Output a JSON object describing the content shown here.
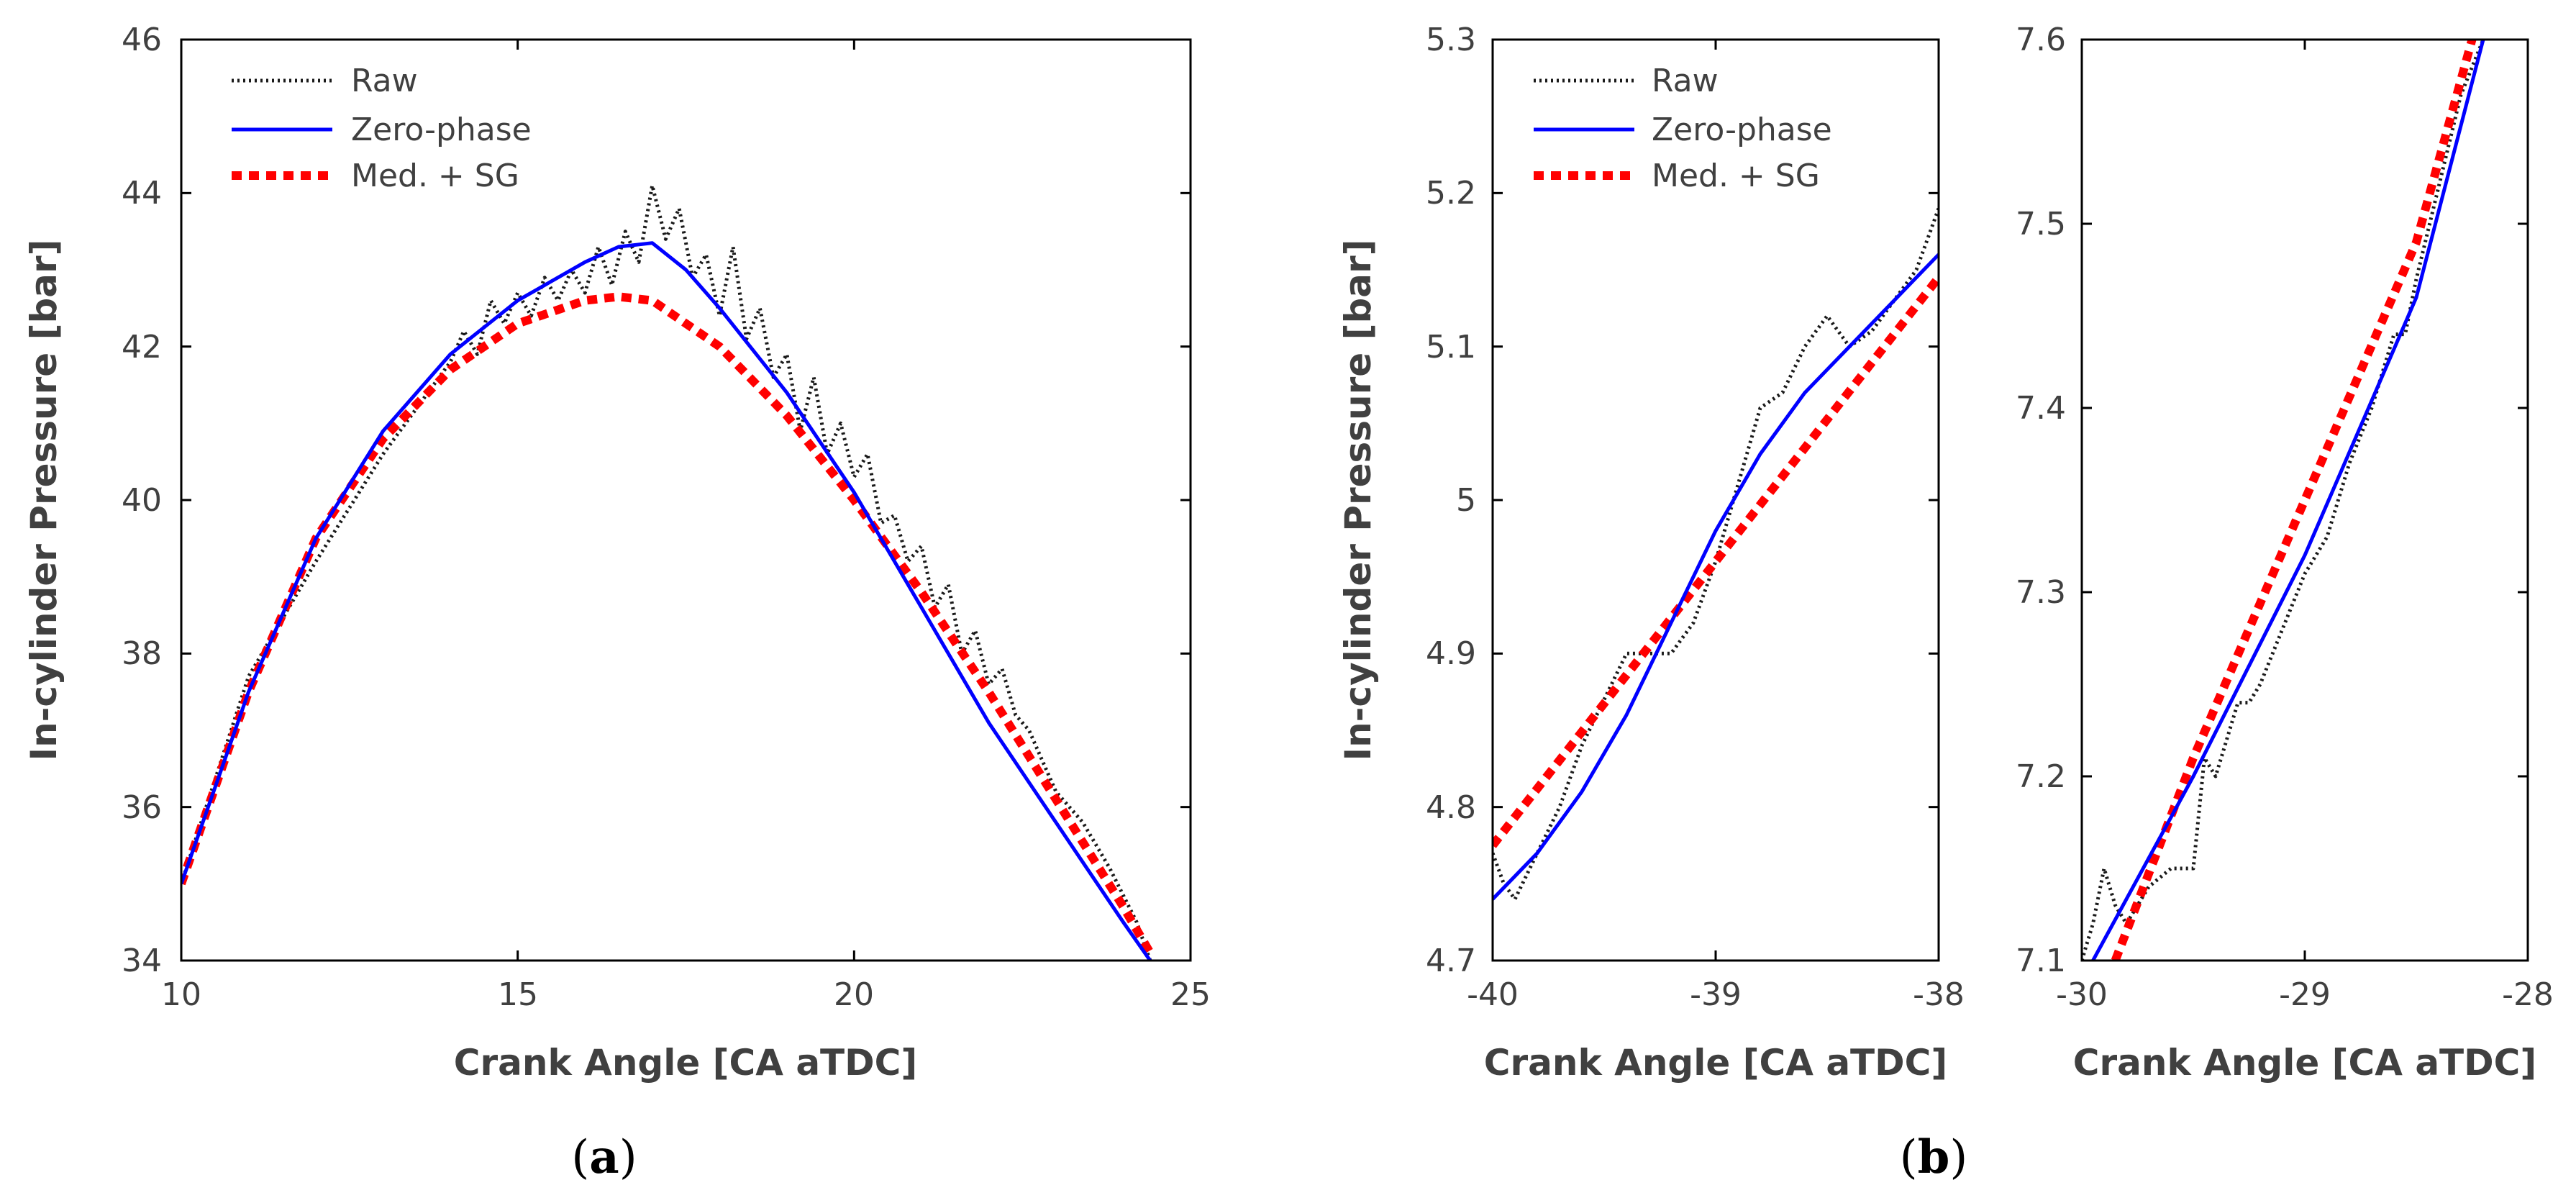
{
  "figure": {
    "panel_labels": [
      {
        "open": "(",
        "letter": "a",
        "close": ")"
      },
      {
        "open": "(",
        "letter": "b",
        "close": ")"
      }
    ]
  },
  "colors": {
    "raw": "#1a1a1a",
    "zero_phase": "#0000ff",
    "med_sg": "#ff0000",
    "axis": "#000000",
    "text": "#404040"
  },
  "chart_data": [
    {
      "id": "a",
      "type": "line",
      "xlabel": "Crank Angle [CA aTDC]",
      "ylabel": "In-cylinder Pressure [bar]",
      "xlim": [
        10,
        25
      ],
      "ylim": [
        34,
        46
      ],
      "xticks": [
        10,
        15,
        20,
        25
      ],
      "yticks": [
        34,
        36,
        38,
        40,
        42,
        44,
        46
      ],
      "xtick_labels": [
        "10",
        "15",
        "20",
        "25"
      ],
      "ytick_labels": [
        "34",
        "36",
        "38",
        "40",
        "42",
        "44",
        "46"
      ],
      "legend": {
        "position": "top-left",
        "entries": [
          "Raw",
          "Zero-phase",
          "Med. + SG"
        ]
      },
      "series": [
        {
          "name": "Raw",
          "style": "dotted",
          "x": [
            10,
            11,
            12,
            13,
            13.5,
            14,
            14.2,
            14.4,
            14.6,
            14.8,
            15.0,
            15.2,
            15.4,
            15.6,
            15.8,
            16.0,
            16.2,
            16.4,
            16.6,
            16.8,
            17.0,
            17.2,
            17.4,
            17.6,
            17.8,
            18.0,
            18.2,
            18.4,
            18.6,
            18.8,
            19.0,
            19.2,
            19.4,
            19.6,
            19.8,
            20.0,
            20.2,
            20.4,
            20.6,
            20.8,
            21.0,
            21.2,
            21.4,
            21.6,
            21.8,
            22.0,
            22.2,
            22.4,
            22.6,
            22.8,
            23.0,
            23.4,
            23.8,
            24.2,
            24.4
          ],
          "y": [
            35.0,
            37.7,
            39.2,
            40.6,
            41.2,
            41.8,
            42.2,
            41.9,
            42.6,
            42.3,
            42.7,
            42.4,
            42.9,
            42.6,
            43.0,
            42.7,
            43.3,
            42.8,
            43.5,
            43.1,
            44.1,
            43.4,
            43.8,
            42.9,
            43.2,
            42.4,
            43.3,
            42.1,
            42.5,
            41.6,
            41.9,
            40.9,
            41.6,
            40.6,
            41.0,
            40.3,
            40.6,
            39.7,
            39.8,
            39.2,
            39.4,
            38.6,
            38.9,
            38.0,
            38.3,
            37.6,
            37.8,
            37.2,
            37.0,
            36.6,
            36.2,
            35.8,
            35.2,
            34.5,
            34.0
          ]
        },
        {
          "name": "Zero-phase",
          "style": "solid",
          "x": [
            10,
            11,
            12,
            13,
            14,
            15,
            16,
            16.5,
            17,
            17.5,
            18,
            19,
            20,
            21,
            22,
            23,
            24,
            24.4
          ],
          "y": [
            35.0,
            37.5,
            39.5,
            40.9,
            41.9,
            42.6,
            43.1,
            43.3,
            43.35,
            43.0,
            42.5,
            41.4,
            40.1,
            38.6,
            37.1,
            35.8,
            34.5,
            34.0
          ]
        },
        {
          "name": "Med. + SG",
          "style": "dashed",
          "x": [
            10,
            11,
            12,
            13,
            14,
            15,
            16,
            16.5,
            17,
            18,
            19,
            20,
            21,
            22,
            23,
            24,
            24.4
          ],
          "y": [
            35.0,
            37.5,
            39.5,
            40.8,
            41.7,
            42.3,
            42.6,
            42.65,
            42.6,
            42.0,
            41.1,
            40.0,
            38.8,
            37.5,
            36.1,
            34.7,
            34.1
          ]
        }
      ]
    },
    {
      "id": "b-left",
      "type": "line",
      "xlabel": "Crank Angle [CA aTDC]",
      "ylabel": "In-cylinder Pressure [bar]",
      "xlim": [
        -40,
        -38
      ],
      "ylim": [
        4.7,
        5.3
      ],
      "xticks": [
        -40,
        -39,
        -38
      ],
      "yticks": [
        4.7,
        4.8,
        4.9,
        5.0,
        5.1,
        5.2,
        5.3
      ],
      "xtick_labels": [
        "-40",
        "-39",
        "-38"
      ],
      "ytick_labels": [
        "4.7",
        "4.8",
        "4.9",
        "5",
        "5.1",
        "5.2",
        "5.3"
      ],
      "legend": {
        "position": "top-left",
        "entries": [
          "Raw",
          "Zero-phase",
          "Med. + SG"
        ]
      },
      "series": [
        {
          "name": "Raw",
          "style": "dotted",
          "x": [
            -40.0,
            -39.95,
            -39.9,
            -39.8,
            -39.7,
            -39.6,
            -39.5,
            -39.4,
            -39.3,
            -39.2,
            -39.1,
            -39.0,
            -38.9,
            -38.8,
            -38.7,
            -38.6,
            -38.5,
            -38.4,
            -38.3,
            -38.2,
            -38.1,
            -38.0
          ],
          "y": [
            4.77,
            4.75,
            4.74,
            4.77,
            4.8,
            4.84,
            4.87,
            4.9,
            4.9,
            4.9,
            4.92,
            4.96,
            5.01,
            5.06,
            5.07,
            5.1,
            5.12,
            5.1,
            5.11,
            5.13,
            5.15,
            5.19
          ]
        },
        {
          "name": "Zero-phase",
          "style": "solid",
          "x": [
            -40.0,
            -39.8,
            -39.6,
            -39.4,
            -39.2,
            -39.0,
            -38.8,
            -38.6,
            -38.4,
            -38.2,
            -38.0
          ],
          "y": [
            4.74,
            4.77,
            4.81,
            4.86,
            4.92,
            4.98,
            5.03,
            5.07,
            5.1,
            5.13,
            5.16
          ]
        },
        {
          "name": "Med. + SG",
          "style": "dashed",
          "x": [
            -40.0,
            -39.0,
            -38.0
          ],
          "y": [
            4.775,
            4.96,
            5.145
          ]
        }
      ]
    },
    {
      "id": "b-right",
      "type": "line",
      "xlabel": "Crank Angle [CA aTDC]",
      "ylabel": "",
      "xlim": [
        -30,
        -28
      ],
      "ylim": [
        7.1,
        7.6
      ],
      "xticks": [
        -30,
        -29,
        -28
      ],
      "yticks": [
        7.1,
        7.2,
        7.3,
        7.4,
        7.5,
        7.6
      ],
      "xtick_labels": [
        "-30",
        "-29",
        "-28"
      ],
      "ytick_labels": [
        "7.1",
        "7.2",
        "7.3",
        "7.4",
        "7.5",
        "7.6"
      ],
      "series": [
        {
          "name": "Raw",
          "style": "dotted",
          "x": [
            -30.0,
            -29.95,
            -29.9,
            -29.85,
            -29.8,
            -29.7,
            -29.6,
            -29.5,
            -29.45,
            -29.4,
            -29.3,
            -29.25,
            -29.2,
            -29.1,
            -29.0,
            -28.9,
            -28.8,
            -28.7,
            -28.6,
            -28.55,
            -28.5,
            -28.4,
            -28.3,
            -28.2
          ],
          "y": [
            7.1,
            7.12,
            7.15,
            7.13,
            7.12,
            7.14,
            7.15,
            7.15,
            7.21,
            7.2,
            7.24,
            7.24,
            7.25,
            7.28,
            7.31,
            7.33,
            7.37,
            7.4,
            7.44,
            7.44,
            7.47,
            7.52,
            7.57,
            7.6
          ]
        },
        {
          "name": "Zero-phase",
          "style": "solid",
          "x": [
            -29.95,
            -29.5,
            -29.0,
            -28.5,
            -28.2
          ],
          "y": [
            7.1,
            7.2,
            7.32,
            7.46,
            7.6
          ]
        },
        {
          "name": "Med. + SG",
          "style": "dashed",
          "x": [
            -29.85,
            -29.5,
            -29.0,
            -28.5,
            -28.25
          ],
          "y": [
            7.1,
            7.21,
            7.35,
            7.49,
            7.6
          ]
        }
      ]
    }
  ]
}
